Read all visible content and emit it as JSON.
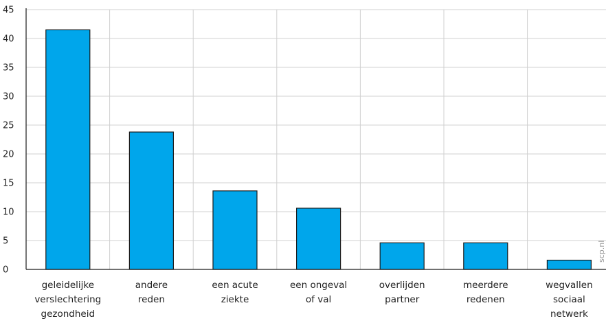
{
  "chart_data": {
    "type": "bar",
    "categories": [
      [
        "geleidelijke",
        "verslechtering",
        "gezondheid"
      ],
      [
        "andere",
        "reden"
      ],
      [
        "een acute",
        "ziekte"
      ],
      [
        "een ongeval",
        "of val"
      ],
      [
        "overlijden",
        "partner"
      ],
      [
        "meerdere",
        "redenen"
      ],
      [
        "wegvallen",
        "sociaal",
        "netwerk"
      ]
    ],
    "values": [
      41.5,
      23.8,
      13.6,
      10.6,
      4.6,
      4.6,
      1.6
    ],
    "ylim": [
      0,
      45
    ],
    "yticks": [
      0,
      5,
      10,
      15,
      20,
      25,
      30,
      35,
      40,
      45
    ],
    "grid": true,
    "bar_color": "#00a6eb",
    "bar_stroke": "#1a1a1a",
    "grid_color": "#d0d0d0",
    "watermark": "scp.nl"
  }
}
